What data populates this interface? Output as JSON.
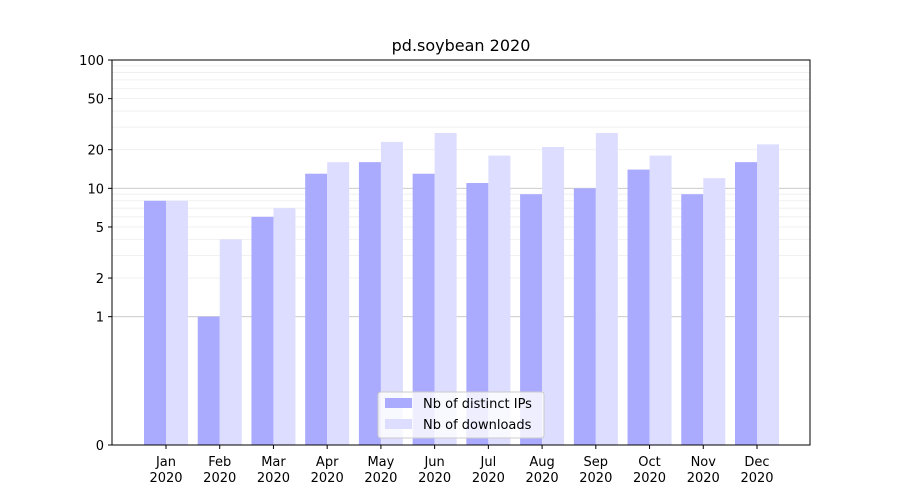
{
  "chart_data": {
    "type": "bar",
    "title": "pd.soybean 2020",
    "xlabel": "",
    "ylabel": "",
    "yscale": "symlog",
    "ylim": [
      0,
      100
    ],
    "yticks": [
      "0",
      "1",
      "2",
      "5",
      "10",
      "20",
      "50",
      "100"
    ],
    "categories": [
      [
        "Jan",
        "2020"
      ],
      [
        "Feb",
        "2020"
      ],
      [
        "Mar",
        "2020"
      ],
      [
        "Apr",
        "2020"
      ],
      [
        "May",
        "2020"
      ],
      [
        "Jun",
        "2020"
      ],
      [
        "Jul",
        "2020"
      ],
      [
        "Aug",
        "2020"
      ],
      [
        "Sep",
        "2020"
      ],
      [
        "Oct",
        "2020"
      ],
      [
        "Nov",
        "2020"
      ],
      [
        "Dec",
        "2020"
      ]
    ],
    "series": [
      {
        "name": "Nb of distinct IPs",
        "color": "#aaaaff",
        "values": [
          8,
          1,
          6,
          13,
          16,
          13,
          11,
          9,
          10,
          14,
          9,
          16
        ]
      },
      {
        "name": "Nb of downloads",
        "color": "#ddddff",
        "values": [
          8,
          4,
          7,
          16,
          23,
          27,
          18,
          21,
          27,
          18,
          12,
          22
        ]
      }
    ],
    "legend_position": "lower center",
    "grid": true
  }
}
